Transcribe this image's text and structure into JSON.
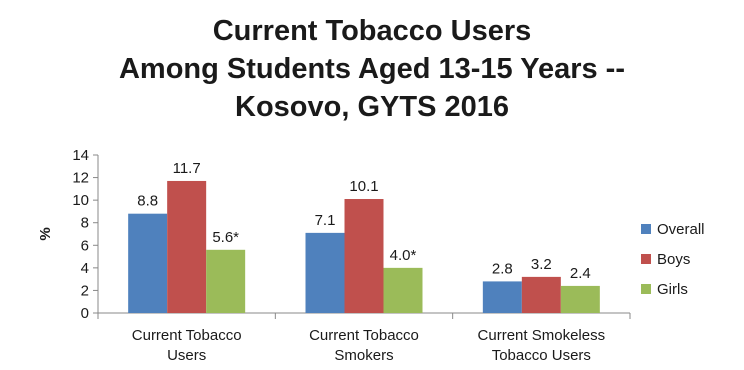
{
  "chart_data": {
    "type": "bar",
    "title_lines": [
      "Current Tobacco Users",
      "Among Students Aged 13-15 Years --",
      "Kosovo, GYTS 2016"
    ],
    "ylabel": "%",
    "xlabel": "",
    "ylim": [
      0,
      14
    ],
    "yticks": [
      0,
      2,
      4,
      6,
      8,
      10,
      12,
      14
    ],
    "categories": [
      [
        "Current Tobacco",
        "Users"
      ],
      [
        "Current Tobacco",
        "Smokers"
      ],
      [
        "Current Smokeless",
        "Tobacco Users"
      ]
    ],
    "series": [
      {
        "name": "Overall",
        "color": "#4f81bd",
        "values": [
          8.8,
          7.1,
          2.8
        ],
        "labels": [
          "8.8",
          "7.1",
          "2.8"
        ]
      },
      {
        "name": "Boys",
        "color": "#c0504d",
        "values": [
          11.7,
          10.1,
          3.2
        ],
        "labels": [
          "11.7",
          "10.1",
          "3.2"
        ]
      },
      {
        "name": "Girls",
        "color": "#9bbb59",
        "values": [
          5.6,
          4.0,
          2.4
        ],
        "labels": [
          "5.6*",
          "4.0*",
          "2.4"
        ]
      }
    ],
    "grid": false,
    "legend_position": "right"
  }
}
